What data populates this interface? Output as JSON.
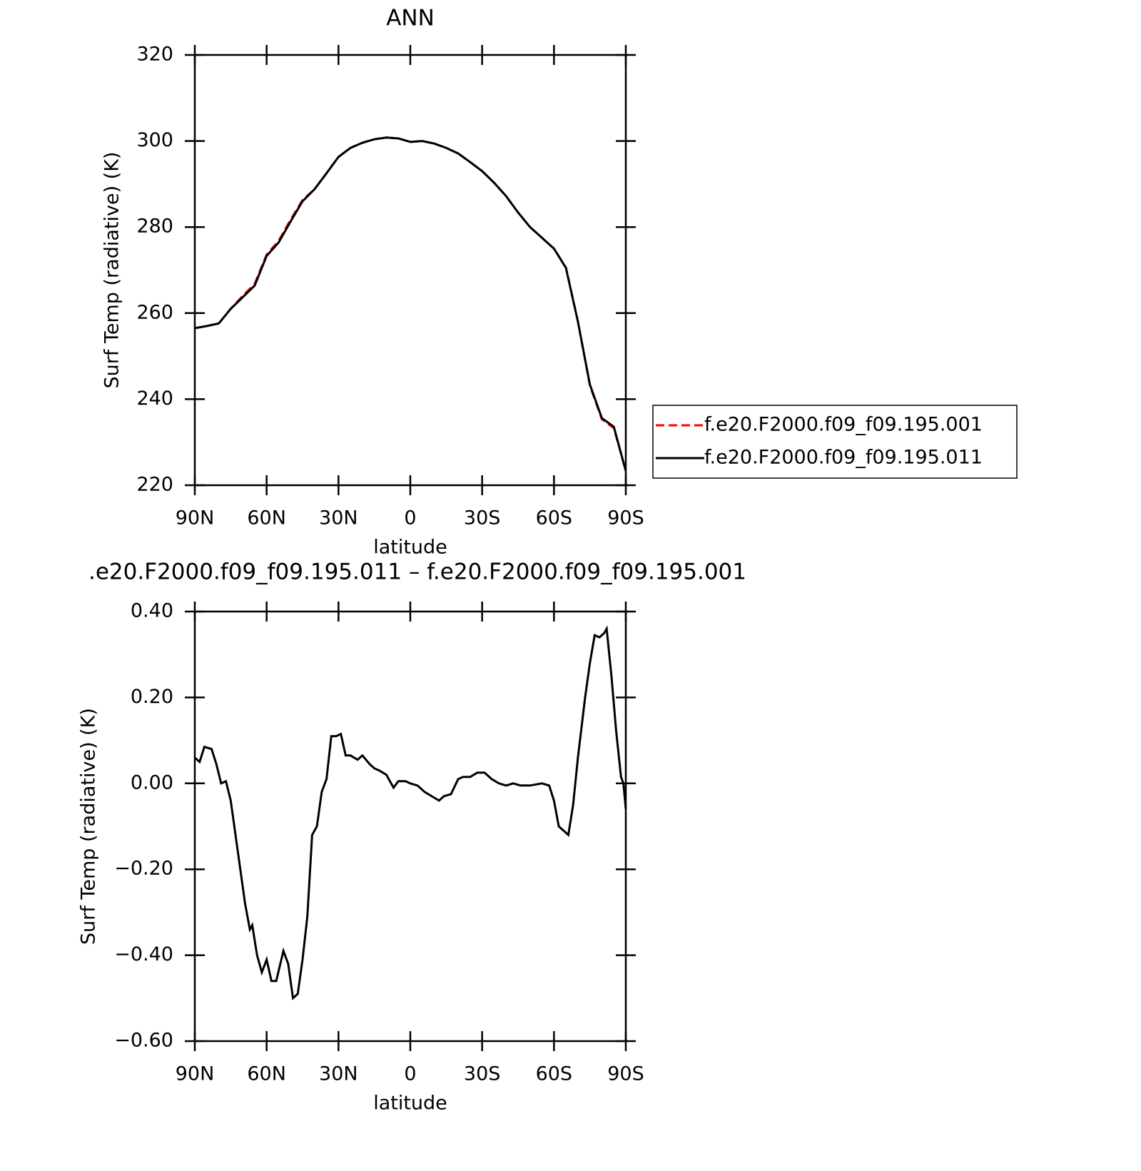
{
  "chart_data": [
    {
      "type": "line",
      "title": "ANN",
      "xlabel": "latitude",
      "ylabel": "Surf Temp (radiative) (K)",
      "x": [
        90,
        85,
        80,
        75,
        70,
        65,
        60,
        55,
        50,
        45,
        40,
        35,
        30,
        25,
        20,
        15,
        10,
        5,
        0,
        -5,
        -10,
        -15,
        -20,
        -25,
        -30,
        -35,
        -40,
        -45,
        -50,
        -55,
        -60,
        -65,
        -70,
        -75,
        -80,
        -85,
        -90
      ],
      "series": [
        {
          "name": "f.e20.F2000.f09_f09.195.001",
          "color": "#ff0000",
          "line_style": "dashed",
          "values": [
            256.5,
            257,
            257.6,
            261,
            264,
            266.8,
            273.6,
            276.8,
            281.7,
            286.3,
            288.8,
            292.5,
            296.3,
            298.4,
            299.6,
            300.4,
            300.8,
            300.6,
            299.8,
            300,
            299.4,
            298.4,
            297.1,
            295.1,
            293,
            290.3,
            287.2,
            283.4,
            280,
            277.5,
            275,
            270.6,
            258.1,
            243.2,
            235.3,
            233.3,
            223.3
          ]
        },
        {
          "name": "f.e20.F2000.f09_f09.195.011",
          "color": "#000000",
          "line_style": "solid",
          "values": [
            256.5,
            257,
            257.6,
            261,
            263.7,
            266.4,
            273.3,
            276.4,
            281.3,
            286,
            288.8,
            292.5,
            296.3,
            298.4,
            299.6,
            300.4,
            300.8,
            300.6,
            299.8,
            300,
            299.4,
            298.4,
            297.1,
            295.1,
            293,
            290.3,
            287.2,
            283.4,
            280,
            277.5,
            275,
            270.5,
            258,
            243.4,
            235.6,
            233.6,
            223.3
          ]
        }
      ],
      "xlim": [
        90,
        -90
      ],
      "xticks": [
        {
          "value": 90,
          "label": "90N"
        },
        {
          "value": 60,
          "label": "60N"
        },
        {
          "value": 30,
          "label": "30N"
        },
        0,
        {
          "value": -30,
          "label": "30S"
        },
        {
          "value": -60,
          "label": "60S"
        },
        {
          "value": -90,
          "label": "90S"
        }
      ],
      "ylim": [
        220,
        320
      ],
      "yticks": [
        220,
        240,
        260,
        280,
        300,
        320
      ],
      "legend": "right"
    },
    {
      "type": "line",
      "title": ".e20.F2000.f09_f09.195.011 – f.e20.F2000.f09_f09.195.001",
      "xlabel": "latitude",
      "ylabel": "Surf Temp (radiative) (K)",
      "x": [
        90,
        88,
        86,
        83,
        81,
        79,
        77,
        75,
        72,
        69,
        67,
        66,
        64,
        62,
        60,
        58,
        56,
        53,
        51,
        49,
        47,
        45,
        43,
        41,
        39,
        37,
        35,
        33,
        31,
        29,
        27,
        25,
        22,
        20,
        17,
        15,
        13,
        10,
        7,
        5,
        2,
        0,
        -3,
        -6,
        -9,
        -12,
        -14,
        -17,
        -20,
        -22,
        -25,
        -28,
        -31,
        -34,
        -37,
        -40,
        -43,
        -46,
        -50,
        -55,
        -58,
        -60,
        -62,
        -64,
        -66,
        -68,
        -70,
        -73,
        -75,
        -77,
        -79,
        -81,
        -82,
        -84,
        -86,
        -88,
        -89,
        -90
      ],
      "series": [
        {
          "color": "#000000",
          "line_style": "solid",
          "values": [
            0.06,
            0.05,
            0.085,
            0.08,
            0.045,
            0.0,
            0.005,
            -0.04,
            -0.16,
            -0.28,
            -0.34,
            -0.33,
            -0.4,
            -0.44,
            -0.41,
            -0.46,
            -0.46,
            -0.39,
            -0.42,
            -0.5,
            -0.49,
            -0.41,
            -0.31,
            -0.12,
            -0.1,
            -0.02,
            0.01,
            0.11,
            0.11,
            0.115,
            0.065,
            0.065,
            0.055,
            0.065,
            0.045,
            0.035,
            0.03,
            0.02,
            -0.01,
            0.005,
            0.005,
            0.0,
            -0.005,
            -0.02,
            -0.03,
            -0.04,
            -0.03,
            -0.025,
            0.01,
            0.015,
            0.015,
            0.025,
            0.025,
            0.01,
            0.0,
            -0.005,
            0.0,
            -0.005,
            -0.005,
            0.0,
            -0.005,
            -0.04,
            -0.1,
            -0.11,
            -0.12,
            -0.05,
            0.06,
            0.2,
            0.28,
            0.345,
            0.34,
            0.35,
            0.36,
            0.25,
            0.12,
            0.015,
            0.0,
            -0.06
          ]
        }
      ],
      "xlim": [
        90,
        -90
      ],
      "xticks": [
        {
          "value": 90,
          "label": "90N"
        },
        {
          "value": 60,
          "label": "60N"
        },
        {
          "value": 30,
          "label": "30N"
        },
        0,
        {
          "value": -30,
          "label": "30S"
        },
        {
          "value": -60,
          "label": "60S"
        },
        {
          "value": -90,
          "label": "90S"
        }
      ],
      "ylim": [
        -0.6,
        0.4
      ],
      "yticks": [
        {
          "value": -0.6,
          "label": "−0.60"
        },
        {
          "value": -0.4,
          "label": "−0.40"
        },
        {
          "value": -0.2,
          "label": "−0.20"
        },
        {
          "value": 0,
          "label": "0.00"
        },
        {
          "value": 0.2,
          "label": "0.20"
        },
        {
          "value": 0.4,
          "label": "0.40"
        }
      ]
    }
  ]
}
